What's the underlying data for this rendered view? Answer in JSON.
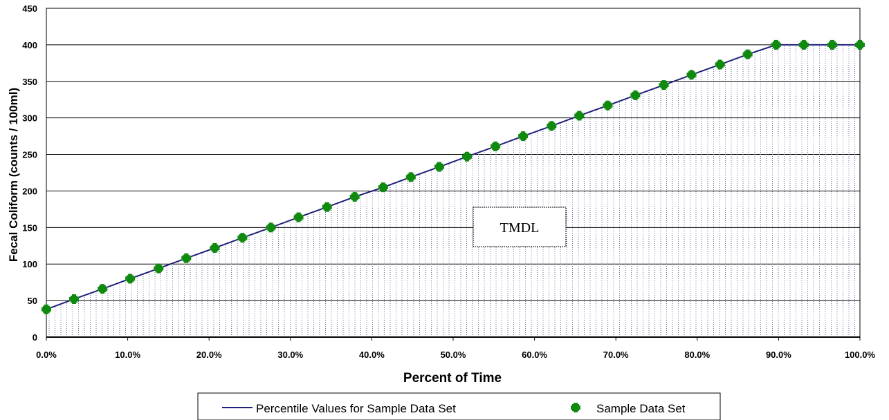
{
  "chart_data": {
    "type": "line",
    "title": "",
    "xlabel": "Percent of Time",
    "ylabel": "Fecal Coliform (counts / 100ml)",
    "xlim": [
      0,
      100
    ],
    "ylim": [
      0,
      450
    ],
    "x_ticks": [
      "0.0%",
      "10.0%",
      "20.0%",
      "30.0%",
      "40.0%",
      "50.0%",
      "60.0%",
      "70.0%",
      "80.0%",
      "90.0%",
      "100.0%"
    ],
    "y_ticks": [
      "0",
      "50",
      "100",
      "150",
      "200",
      "250",
      "300",
      "350",
      "400",
      "450"
    ],
    "grid": "horizontal",
    "legend_position": "bottom",
    "annotation": "TMDL",
    "series": [
      {
        "name": "Percentile Values for Sample Data Set",
        "kind": "line",
        "color": "#1f1f7a",
        "x": [
          0.0,
          3.4,
          6.9,
          10.3,
          13.8,
          17.2,
          20.7,
          24.1,
          27.6,
          31.0,
          34.5,
          37.9,
          41.4,
          44.8,
          48.3,
          51.7,
          55.2,
          58.6,
          62.1,
          65.5,
          69.0,
          72.4,
          75.9,
          79.3,
          82.8,
          86.2,
          89.7,
          93.1,
          96.6,
          100.0
        ],
        "y": [
          38,
          52,
          66,
          80,
          94,
          108,
          122,
          136,
          150,
          164,
          178,
          192,
          205,
          219,
          233,
          247,
          261,
          275,
          289,
          303,
          317,
          331,
          345,
          359,
          373,
          387,
          400,
          400,
          400,
          400
        ]
      },
      {
        "name": "Sample Data Set",
        "kind": "scatter",
        "color": "#0f8a0f",
        "x": [
          0.0,
          3.4,
          6.9,
          10.3,
          13.8,
          17.2,
          20.7,
          24.1,
          27.6,
          31.0,
          34.5,
          37.9,
          41.4,
          44.8,
          48.3,
          51.7,
          55.2,
          58.6,
          62.1,
          65.5,
          69.0,
          72.4,
          75.9,
          79.3,
          82.8,
          86.2,
          89.7,
          93.1,
          96.6,
          100.0
        ],
        "y": [
          38,
          52,
          66,
          80,
          94,
          108,
          122,
          136,
          150,
          164,
          178,
          192,
          205,
          219,
          233,
          247,
          261,
          275,
          289,
          303,
          317,
          331,
          345,
          359,
          373,
          387,
          400,
          400,
          400,
          400
        ]
      }
    ]
  }
}
